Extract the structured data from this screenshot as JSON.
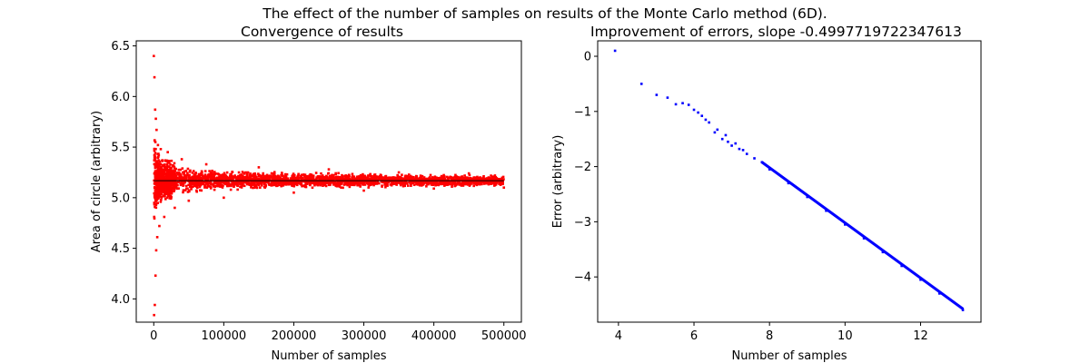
{
  "suptitle": "The effect of the number of samples on results of the Monte Carlo method (6D).",
  "chart_data": [
    {
      "type": "scatter",
      "title": "Convergence of results",
      "xlabel": "Number of samples",
      "ylabel": "Area of circle (arbitrary)",
      "xlim": [
        -25000,
        525000
      ],
      "ylim": [
        3.77,
        6.55
      ],
      "xticks": [
        0,
        100000,
        200000,
        300000,
        400000,
        500000
      ],
      "xtick_labels": [
        "0",
        "100000",
        "200000",
        "300000",
        "400000",
        "500000"
      ],
      "yticks": [
        4.0,
        4.5,
        5.0,
        5.5,
        6.0,
        6.5
      ],
      "ytick_labels": [
        "4.0",
        "4.5",
        "5.0",
        "5.5",
        "6.0",
        "6.5"
      ],
      "grid": false,
      "reference_line": {
        "y": 5.168,
        "color": "#000000"
      },
      "series": [
        {
          "color": "#ff0000",
          "marker": "dot",
          "x": [
            100,
            500,
            1000,
            1500,
            2000,
            2500,
            3000,
            3500,
            4000,
            5000,
            6000,
            8000,
            10000,
            15000,
            20000,
            30000,
            40000,
            50000,
            75000,
            100000,
            150000,
            200000,
            250000,
            300000,
            350000,
            400000,
            450000,
            500000
          ],
          "y": [
            6.4,
            3.84,
            6.19,
            3.94,
            5.87,
            4.23,
            5.78,
            4.48,
            5.67,
            4.61,
            5.52,
            4.72,
            5.48,
            4.81,
            5.45,
            4.9,
            5.38,
            4.97,
            5.33,
            5.0,
            5.3,
            5.05,
            5.28,
            5.07,
            5.25,
            5.09,
            5.24,
            5.1
          ]
        }
      ],
      "band": {
        "x": [
          500,
          2000,
          5000,
          10000,
          20000,
          40000,
          60000,
          100000,
          150000,
          200000,
          300000,
          400000,
          500000
        ],
        "lower": [
          4.6,
          4.75,
          4.85,
          4.92,
          4.97,
          5.01,
          5.03,
          5.05,
          5.07,
          5.08,
          5.09,
          5.1,
          5.1
        ],
        "upper": [
          5.8,
          5.6,
          5.5,
          5.42,
          5.38,
          5.33,
          5.31,
          5.29,
          5.27,
          5.26,
          5.25,
          5.24,
          5.23
        ]
      }
    },
    {
      "type": "scatter",
      "title": "Improvement of errors, slope -0.4997719722347613",
      "xlabel": "Number of samples",
      "ylabel": "Error (arbitrary)",
      "xlim": [
        3.45,
        13.6
      ],
      "ylim": [
        -4.82,
        0.28
      ],
      "xticks": [
        4,
        6,
        8,
        10,
        12
      ],
      "xtick_labels": [
        "4",
        "6",
        "8",
        "10",
        "12"
      ],
      "yticks": [
        0,
        -1,
        -2,
        -3,
        -4
      ],
      "ytick_labels": [
        "0",
        "−1",
        "−2",
        "−3",
        "−4"
      ],
      "grid": false,
      "slope": -0.4997719722347613,
      "series": [
        {
          "color": "#0000ff",
          "marker": "dot",
          "x": [
            3.91,
            4.61,
            5.01,
            5.3,
            5.52,
            5.7,
            5.86,
            6.0,
            6.11,
            6.21,
            6.31,
            6.4,
            6.55,
            6.62,
            6.75,
            6.84,
            6.9,
            7.0,
            7.1,
            7.2,
            7.3,
            7.4,
            7.6,
            7.8,
            8.0,
            8.5,
            9.0,
            9.5,
            10.0,
            10.5,
            11.0,
            11.5,
            12.0,
            12.5,
            13.12
          ],
          "y": [
            0.1,
            -0.5,
            -0.7,
            -0.75,
            -0.87,
            -0.85,
            -0.88,
            -0.97,
            -1.02,
            -1.08,
            -1.15,
            -1.2,
            -1.38,
            -1.33,
            -1.5,
            -1.43,
            -1.55,
            -1.62,
            -1.58,
            -1.68,
            -1.7,
            -1.77,
            -1.85,
            -1.92,
            -2.05,
            -2.3,
            -2.55,
            -2.8,
            -3.05,
            -3.3,
            -3.55,
            -3.8,
            -4.05,
            -4.3,
            -4.6
          ]
        }
      ]
    }
  ]
}
